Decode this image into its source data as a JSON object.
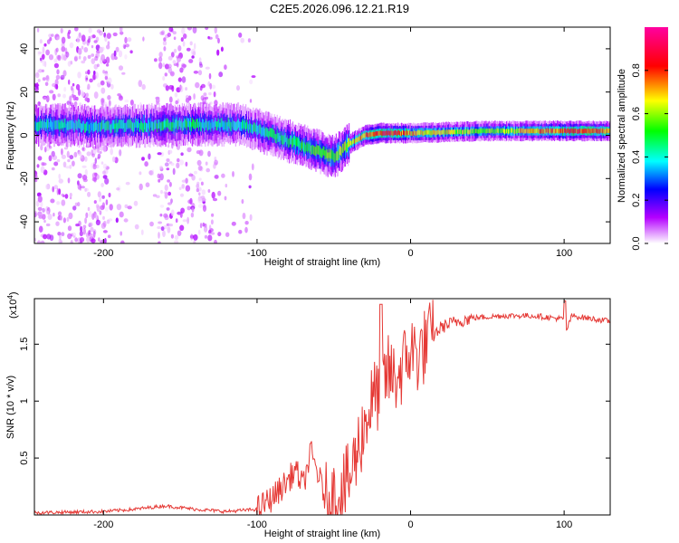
{
  "title": "C2E5.2026.096.12.21.R19",
  "colors": {
    "snr_line": "#e53935",
    "frame": "#000000"
  },
  "chart_data": [
    {
      "type": "heatmap",
      "name": "spectrogram",
      "xlabel": "Height of straight line (km)",
      "ylabel": "Frequency (Hz)",
      "xlim": [
        -245,
        130
      ],
      "ylim": [
        -50,
        50
      ],
      "xticks": [
        -200,
        -100,
        0,
        100
      ],
      "yticks": [
        -40,
        -20,
        0,
        20,
        40
      ],
      "colorbar": {
        "label": "Normalized spectral amplitude",
        "range": [
          0,
          1
        ],
        "ticks": [
          0.0,
          0.2,
          0.4,
          0.6,
          0.8
        ],
        "colormap": [
          "#ffffff",
          "#b400ff",
          "#0000ff",
          "#00ffff",
          "#00ff00",
          "#ffff00",
          "#ff0000",
          "#ff00a0"
        ]
      },
      "ridge": {
        "x": [
          -245,
          -200,
          -150,
          -110,
          -90,
          -70,
          -50,
          -40,
          -30,
          -20,
          -10,
          0,
          50,
          100,
          130
        ],
        "freq": [
          5,
          4,
          5,
          5,
          0,
          -5,
          -10,
          -4,
          0,
          1,
          1,
          1,
          2,
          2,
          2
        ],
        "amplitude": [
          0.45,
          0.45,
          0.5,
          0.45,
          0.5,
          0.55,
          0.6,
          0.7,
          0.8,
          0.85,
          0.85,
          0.75,
          0.6,
          0.85,
          0.8
        ]
      }
    },
    {
      "type": "line",
      "name": "snr",
      "xlabel": "Height of straight line (km)",
      "ylabel": "SNR (10 * v/v)",
      "yscale_label": "(x10",
      "yscale_exponent": "4",
      "xlim": [
        -245,
        130
      ],
      "ylim": [
        0,
        1.9
      ],
      "xticks": [
        -200,
        -100,
        0,
        100
      ],
      "yticks": [
        0.5,
        1.0,
        1.5
      ],
      "series": [
        {
          "name": "SNR",
          "x": [
            -245,
            -200,
            -180,
            -160,
            -140,
            -120,
            -100,
            -90,
            -80,
            -75,
            -70,
            -65,
            -60,
            -55,
            -50,
            -45,
            -40,
            -35,
            -30,
            -25,
            -20,
            -15,
            -10,
            -5,
            0,
            5,
            10,
            20,
            30,
            40,
            60,
            80,
            100,
            101,
            105,
            120,
            130
          ],
          "y": [
            0.02,
            0.03,
            0.05,
            0.08,
            0.05,
            0.03,
            0.05,
            0.15,
            0.3,
            0.4,
            0.25,
            0.55,
            0.35,
            0.12,
            0.15,
            0.2,
            0.3,
            0.55,
            0.8,
            1.0,
            1.1,
            1.25,
            1.2,
            1.3,
            1.45,
            1.4,
            1.5,
            1.65,
            1.7,
            1.73,
            1.75,
            1.75,
            1.72,
            1.6,
            1.75,
            1.72,
            1.7
          ]
        }
      ]
    }
  ]
}
